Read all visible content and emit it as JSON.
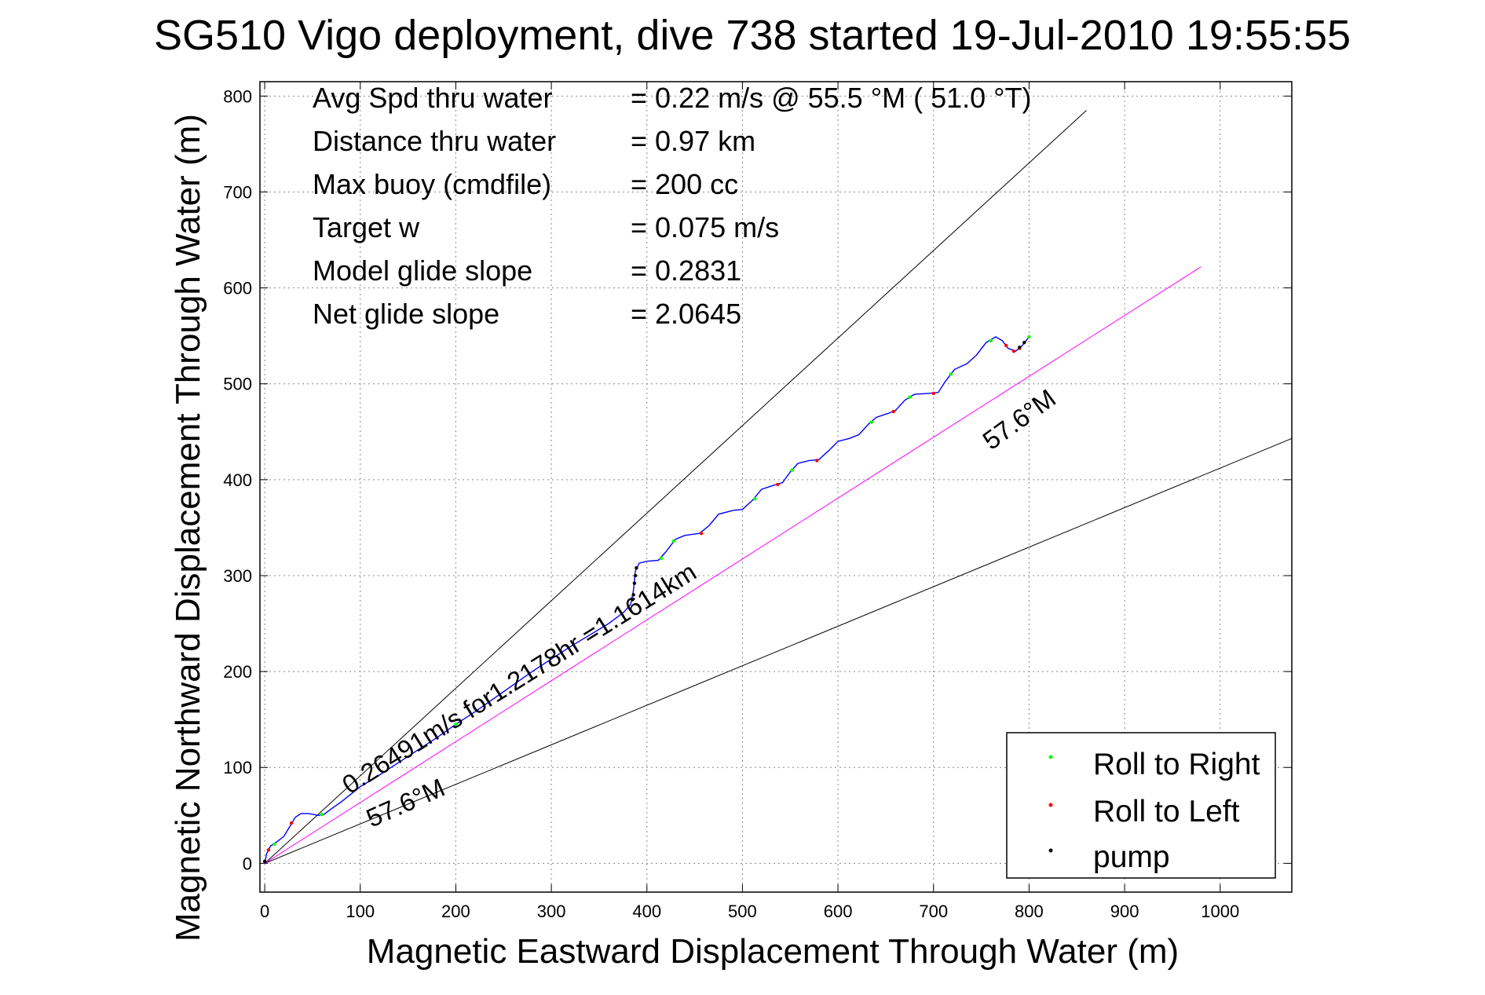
{
  "chart_data": {
    "type": "line",
    "title": "SG510 Vigo deployment, dive 738 started 19-Jul-2010 19:55:55",
    "xlabel": "Magnetic Eastward Displacement Through Water (m)",
    "ylabel": "Magnetic Northward Displacement Through Water (m)",
    "xlim": [
      -5,
      1075
    ],
    "ylim": [
      -30,
      815
    ],
    "xticks": [
      0,
      100,
      200,
      300,
      400,
      500,
      600,
      700,
      800,
      900,
      1000
    ],
    "yticks": [
      0,
      100,
      200,
      300,
      400,
      500,
      600,
      700,
      800
    ],
    "grid": true,
    "legend_position": "bottom-right",
    "info": [
      {
        "label": "Avg Spd thru water",
        "value": "=  0.22 m/s @  55.5 °M ( 51.0 °T)"
      },
      {
        "label": "Distance thru water",
        "value": "=  0.97 km"
      },
      {
        "label": "Max buoy (cmdfile)",
        "value": "= 200 cc"
      },
      {
        "label": "Target w",
        "value": "= 0.075 m/s"
      },
      {
        "label": "Model glide slope",
        "value": "= 0.2831"
      },
      {
        "label": "Net glide slope",
        "value": "= 2.0645"
      }
    ],
    "annotations": {
      "heading_line": "57.6°M",
      "lower_line": "57.6°M",
      "speed_note": "0.26491m/s for1.2178hr =1.1614km"
    },
    "reference_lines": [
      {
        "points": [
          [
            0,
            0
          ],
          [
            860,
            785
          ]
        ],
        "color": "#000000"
      },
      {
        "points": [
          [
            0,
            0
          ],
          [
            1075,
            443
          ]
        ],
        "color": "#000000"
      },
      {
        "points": [
          [
            0,
            0
          ],
          [
            980,
            622
          ]
        ],
        "color": "#ff00ff"
      }
    ],
    "track": [
      [
        0,
        0
      ],
      [
        2,
        10
      ],
      [
        6,
        18
      ],
      [
        12,
        22
      ],
      [
        20,
        28
      ],
      [
        26,
        38
      ],
      [
        32,
        48
      ],
      [
        38,
        52
      ],
      [
        46,
        52
      ],
      [
        56,
        50
      ],
      [
        62,
        51
      ],
      [
        70,
        57
      ],
      [
        80,
        64
      ],
      [
        90,
        72
      ],
      [
        100,
        80
      ],
      [
        120,
        92
      ],
      [
        140,
        105
      ],
      [
        160,
        118
      ],
      [
        180,
        131
      ],
      [
        200,
        145
      ],
      [
        220,
        158
      ],
      [
        240,
        172
      ],
      [
        260,
        186
      ],
      [
        280,
        200
      ],
      [
        300,
        213
      ],
      [
        320,
        226
      ],
      [
        340,
        238
      ],
      [
        360,
        250
      ],
      [
        376,
        262
      ],
      [
        383,
        270
      ],
      [
        386,
        285
      ],
      [
        388,
        305
      ],
      [
        392,
        313
      ],
      [
        400,
        315
      ],
      [
        412,
        316
      ],
      [
        420,
        325
      ],
      [
        430,
        338
      ],
      [
        440,
        342
      ],
      [
        455,
        344
      ],
      [
        465,
        352
      ],
      [
        475,
        364
      ],
      [
        490,
        368
      ],
      [
        500,
        369
      ],
      [
        510,
        378
      ],
      [
        520,
        390
      ],
      [
        532,
        394
      ],
      [
        542,
        397
      ],
      [
        550,
        408
      ],
      [
        558,
        417
      ],
      [
        570,
        420
      ],
      [
        580,
        421
      ],
      [
        590,
        430
      ],
      [
        600,
        440
      ],
      [
        612,
        443
      ],
      [
        622,
        447
      ],
      [
        632,
        458
      ],
      [
        640,
        465
      ],
      [
        652,
        469
      ],
      [
        660,
        472
      ],
      [
        670,
        483
      ],
      [
        680,
        489
      ],
      [
        695,
        490
      ],
      [
        705,
        491
      ],
      [
        712,
        502
      ],
      [
        722,
        515
      ],
      [
        735,
        521
      ],
      [
        745,
        530
      ],
      [
        755,
        543
      ],
      [
        765,
        549
      ],
      [
        772,
        545
      ],
      [
        778,
        537
      ],
      [
        786,
        534
      ],
      [
        793,
        540
      ],
      [
        800,
        549
      ]
    ],
    "markers": {
      "roll_right": [
        [
          10,
          20
        ],
        [
          60,
          51
        ],
        [
          200,
          145
        ],
        [
          415,
          318
        ],
        [
          428,
          336
        ],
        [
          513,
          380
        ],
        [
          552,
          410
        ],
        [
          635,
          460
        ],
        [
          675,
          486
        ],
        [
          718,
          510
        ],
        [
          760,
          545
        ],
        [
          800,
          549
        ]
      ],
      "roll_left": [
        [
          4,
          14
        ],
        [
          28,
          42
        ],
        [
          457,
          344
        ],
        [
          537,
          395
        ],
        [
          578,
          420
        ],
        [
          658,
          471
        ],
        [
          700,
          490
        ],
        [
          776,
          540
        ],
        [
          784,
          534
        ],
        [
          790,
          537
        ]
      ],
      "pump": [
        [
          0,
          2
        ],
        [
          386,
          280
        ],
        [
          387,
          292
        ],
        [
          388,
          300
        ],
        [
          389,
          308
        ],
        [
          385,
          275
        ],
        [
          790,
          538
        ],
        [
          795,
          543
        ]
      ]
    },
    "legend": [
      {
        "label": "Roll to Right",
        "color": "#00ff00"
      },
      {
        "label": "Roll to Left",
        "color": "#ff0000"
      },
      {
        "label": "pump",
        "color": "#000000"
      }
    ],
    "colors": {
      "track": "#0000ff",
      "heading_line": "#ff00ff",
      "reference": "#000000"
    }
  }
}
